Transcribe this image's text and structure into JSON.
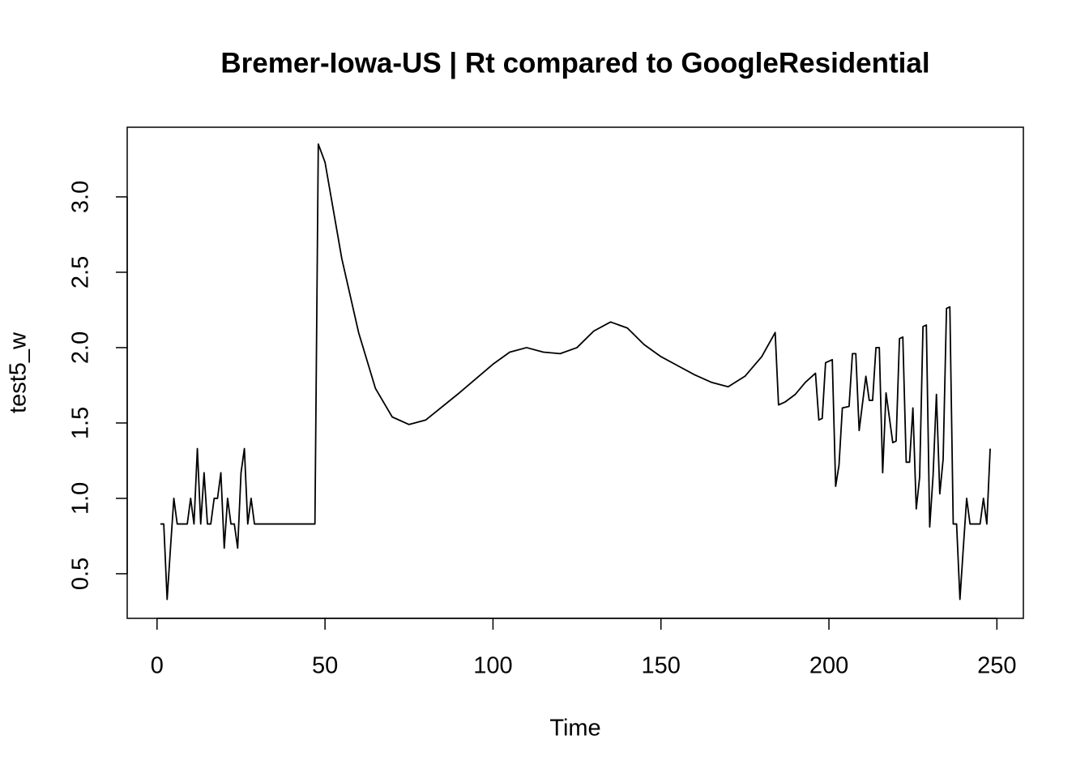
{
  "chart_data": {
    "type": "line",
    "title": "Bremer-Iowa-US | Rt compared to GoogleResidential",
    "xlabel": "Time",
    "ylabel": "test5_w",
    "color": "#000000",
    "x": [
      1,
      2,
      3,
      4,
      5,
      6,
      7,
      8,
      9,
      10,
      11,
      12,
      13,
      14,
      15,
      16,
      17,
      18,
      19,
      20,
      21,
      22,
      23,
      24,
      25,
      26,
      27,
      28,
      29,
      47,
      48,
      50,
      55,
      60,
      65,
      70,
      75,
      80,
      90,
      100,
      105,
      110,
      115,
      120,
      125,
      130,
      135,
      140,
      145,
      150,
      155,
      160,
      165,
      170,
      175,
      180,
      184,
      185,
      187,
      190,
      193,
      196,
      197,
      198,
      199,
      201,
      202,
      203,
      204,
      206,
      207,
      208,
      209,
      211,
      212,
      213,
      214,
      215,
      216,
      217,
      219,
      220,
      221,
      222,
      223,
      224,
      225,
      226,
      227,
      228,
      229,
      230,
      231,
      232,
      233,
      234,
      235,
      236,
      237,
      238,
      239,
      240,
      241,
      242,
      245,
      246,
      247,
      248
    ],
    "values": [
      0.83,
      0.83,
      0.33,
      0.67,
      1.0,
      0.83,
      0.83,
      0.83,
      0.83,
      1.0,
      0.83,
      1.33,
      0.83,
      1.17,
      0.83,
      0.83,
      1.0,
      1.0,
      1.17,
      0.67,
      1.0,
      0.83,
      0.83,
      0.67,
      1.17,
      1.33,
      0.83,
      1.0,
      0.83,
      0.83,
      3.35,
      3.23,
      2.59,
      2.1,
      1.73,
      1.54,
      1.49,
      1.52,
      1.7,
      1.89,
      1.97,
      2.0,
      1.97,
      1.96,
      2.0,
      2.11,
      2.17,
      2.13,
      2.02,
      1.94,
      1.88,
      1.82,
      1.77,
      1.74,
      1.81,
      1.94,
      2.1,
      1.62,
      1.64,
      1.69,
      1.77,
      1.83,
      1.52,
      1.53,
      1.9,
      1.92,
      1.08,
      1.22,
      1.6,
      1.61,
      1.96,
      1.96,
      1.45,
      1.81,
      1.65,
      1.65,
      2.0,
      2.0,
      1.17,
      1.7,
      1.37,
      1.38,
      2.06,
      2.07,
      1.24,
      1.24,
      1.6,
      0.93,
      1.14,
      2.14,
      2.15,
      0.81,
      1.15,
      1.69,
      1.03,
      1.26,
      2.26,
      2.27,
      0.83,
      0.83,
      0.33,
      0.67,
      1.0,
      0.83,
      0.83,
      1.0,
      0.83,
      1.33
    ],
    "xlim": [
      -8.88,
      257.88
    ],
    "ylim": [
      0.204,
      3.462
    ],
    "xticks": [
      0,
      50,
      100,
      150,
      200,
      250
    ],
    "yticks": [
      0.5,
      {
        "value": 1,
        "label": "1.0"
      },
      1.5,
      {
        "value": 2,
        "label": "2.0"
      },
      2.5,
      {
        "value": 3,
        "label": "3.0"
      }
    ]
  }
}
